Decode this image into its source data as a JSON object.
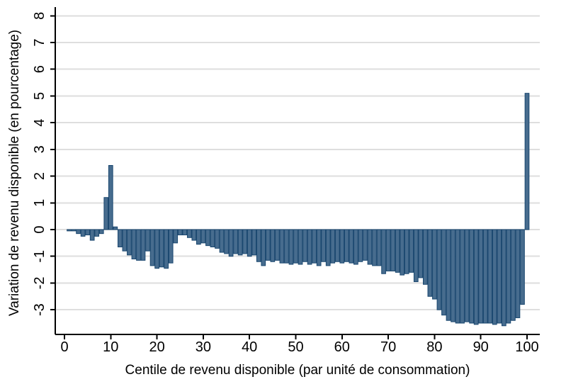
{
  "chart_data": {
    "type": "bar",
    "title": "",
    "xlabel": "Centile de revenu disponible (par unité de consommation)",
    "ylabel": "Variation de revenu disponible (en pourcentage)",
    "x_ticks": [
      0,
      10,
      20,
      30,
      40,
      50,
      60,
      70,
      80,
      90,
      100
    ],
    "y_ticks": [
      -3,
      -2,
      -1,
      0,
      1,
      2,
      3,
      4,
      5,
      6,
      7,
      8
    ],
    "xlim": [
      -2,
      103
    ],
    "ylim": [
      -3.9,
      8.3
    ],
    "grid": "horizontal",
    "legend": "none",
    "x": [
      1,
      2,
      3,
      4,
      5,
      6,
      7,
      8,
      9,
      10,
      11,
      12,
      13,
      14,
      15,
      16,
      17,
      18,
      19,
      20,
      21,
      22,
      23,
      24,
      25,
      26,
      27,
      28,
      29,
      30,
      31,
      32,
      33,
      34,
      35,
      36,
      37,
      38,
      39,
      40,
      41,
      42,
      43,
      44,
      45,
      46,
      47,
      48,
      49,
      50,
      51,
      52,
      53,
      54,
      55,
      56,
      57,
      58,
      59,
      60,
      61,
      62,
      63,
      64,
      65,
      66,
      67,
      68,
      69,
      70,
      71,
      72,
      73,
      74,
      75,
      76,
      77,
      78,
      79,
      80,
      81,
      82,
      83,
      84,
      85,
      86,
      87,
      88,
      89,
      90,
      91,
      92,
      93,
      94,
      95,
      96,
      97,
      98,
      99,
      100
    ],
    "values": [
      -0.05,
      -0.05,
      -0.15,
      -0.25,
      -0.2,
      -0.4,
      -0.25,
      -0.15,
      1.2,
      2.4,
      0.1,
      -0.65,
      -0.8,
      -0.95,
      -1.1,
      -1.15,
      -1.15,
      -0.8,
      -1.35,
      -1.45,
      -1.4,
      -1.45,
      -1.25,
      -0.5,
      -0.2,
      -0.2,
      -0.3,
      -0.4,
      -0.55,
      -0.5,
      -0.6,
      -0.65,
      -0.7,
      -0.85,
      -0.9,
      -1.0,
      -0.9,
      -0.95,
      -0.9,
      -1.0,
      -0.95,
      -1.2,
      -1.35,
      -1.15,
      -1.2,
      -1.15,
      -1.25,
      -1.25,
      -1.3,
      -1.25,
      -1.3,
      -1.2,
      -1.3,
      -1.25,
      -1.35,
      -1.2,
      -1.35,
      -1.25,
      -1.2,
      -1.25,
      -1.2,
      -1.25,
      -1.3,
      -1.2,
      -1.15,
      -1.3,
      -1.35,
      -1.35,
      -1.65,
      -1.55,
      -1.55,
      -1.6,
      -1.7,
      -1.65,
      -1.6,
      -1.95,
      -1.8,
      -2.05,
      -2.5,
      -2.6,
      -3.0,
      -3.2,
      -3.4,
      -3.45,
      -3.5,
      -3.5,
      -3.45,
      -3.5,
      -3.55,
      -3.5,
      -3.5,
      -3.5,
      -3.55,
      -3.5,
      -3.6,
      -3.5,
      -3.4,
      -3.3,
      -2.8,
      5.1
    ],
    "colors": {
      "bar_fill": "#476C8E",
      "bar_stroke": "#1A476F",
      "gridline": "#DEDEDE",
      "axis": "#000000",
      "background": "#FFFFFF"
    }
  }
}
